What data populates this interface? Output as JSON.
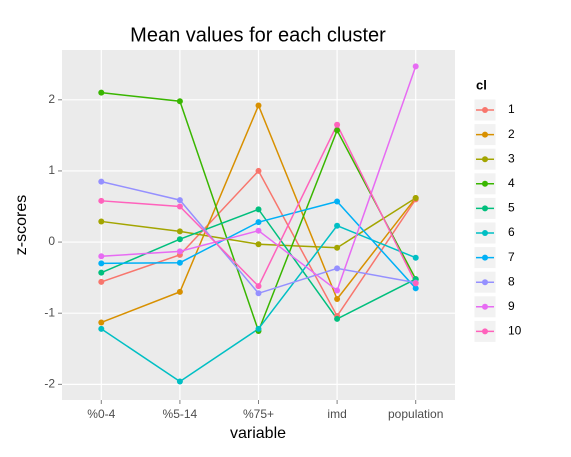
{
  "chart_data": {
    "type": "line",
    "title": "Mean values for each cluster",
    "x_label": "variable",
    "y_label": "z-scores",
    "legend_title": "cl",
    "categories": [
      "%0-4",
      "%5-14",
      "%75+",
      "imd",
      "population"
    ],
    "ylim": [
      -2.22,
      2.7
    ],
    "yticks": [
      -2,
      -1,
      0,
      1,
      2
    ],
    "grid": true,
    "legend": "right",
    "series": [
      {
        "name": "1",
        "color": "#F8766D",
        "values": [
          -0.56,
          -0.18,
          1.0,
          -1.04,
          0.6
        ]
      },
      {
        "name": "2",
        "color": "#D89000",
        "values": [
          -1.13,
          -0.7,
          1.92,
          -0.8,
          0.62
        ]
      },
      {
        "name": "3",
        "color": "#A3A500",
        "values": [
          0.29,
          0.15,
          -0.03,
          -0.08,
          0.62
        ]
      },
      {
        "name": "4",
        "color": "#39B600",
        "values": [
          2.1,
          1.98,
          -1.25,
          1.57,
          -0.52
        ]
      },
      {
        "name": "5",
        "color": "#00BF7D",
        "values": [
          -0.43,
          0.04,
          0.46,
          -1.08,
          -0.52
        ]
      },
      {
        "name": "6",
        "color": "#00BFC4",
        "values": [
          -1.22,
          -1.96,
          -1.22,
          0.23,
          -0.22
        ]
      },
      {
        "name": "7",
        "color": "#00B0F6",
        "values": [
          -0.3,
          -0.29,
          0.28,
          0.57,
          -0.65
        ]
      },
      {
        "name": "8",
        "color": "#9590FF",
        "values": [
          0.85,
          0.59,
          -0.72,
          -0.37,
          -0.57
        ]
      },
      {
        "name": "9",
        "color": "#E76BF3",
        "values": [
          -0.2,
          -0.13,
          0.16,
          -0.68,
          2.47
        ]
      },
      {
        "name": "10",
        "color": "#FF62BC",
        "values": [
          0.58,
          0.5,
          -0.62,
          1.65,
          -0.58
        ]
      }
    ]
  }
}
